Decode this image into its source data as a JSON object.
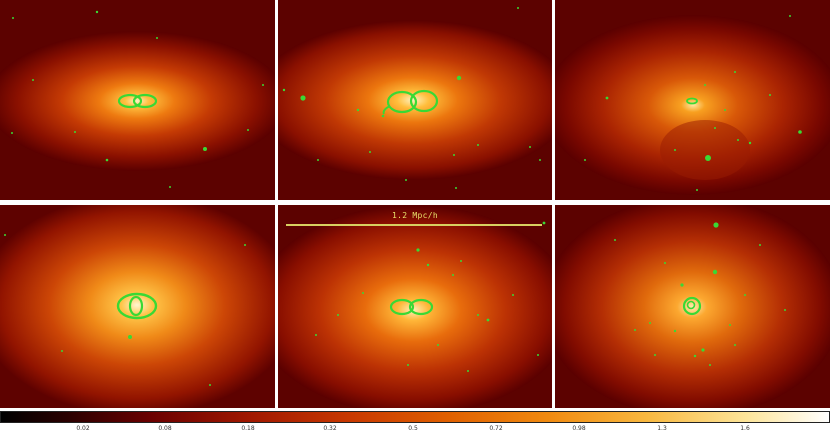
{
  "scale_bar": {
    "label": "1.2 Mpc/h"
  },
  "colorbar": {
    "ticks": [
      "0.02",
      "0.08",
      "0.18",
      "0.32",
      "0.5",
      "0.72",
      "0.98",
      "1.3",
      "1.6"
    ]
  },
  "colors": {
    "contour": "#39d934",
    "scale_bar": "#d8d060",
    "divider": "#ffffff"
  },
  "panels": 6
}
